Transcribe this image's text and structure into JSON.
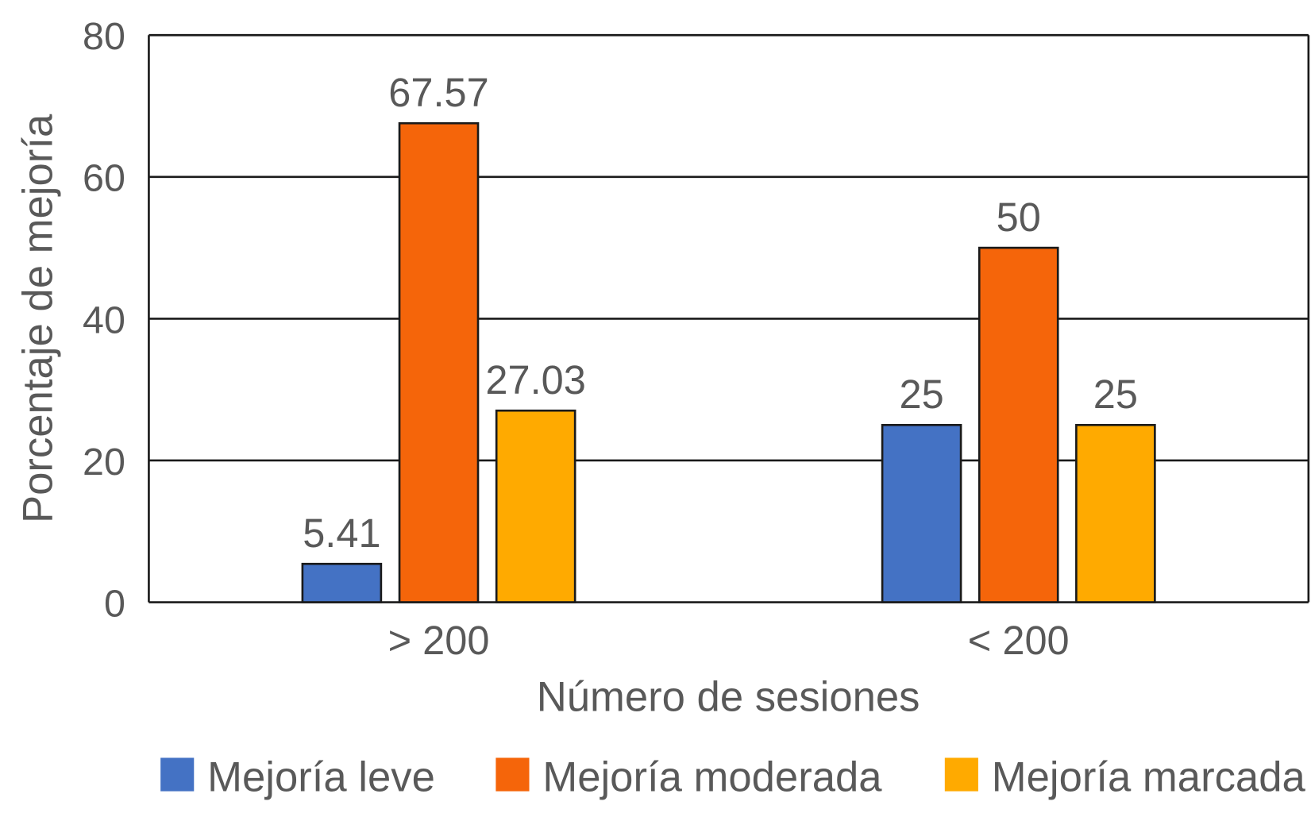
{
  "chart_data": {
    "type": "bar",
    "title": "",
    "xlabel": "Número de sesiones",
    "ylabel": "Porcentaje de mejoría",
    "ylim": [
      0,
      80
    ],
    "yticks": [
      "0",
      "20",
      "40",
      "60",
      "80"
    ],
    "grid": true,
    "legend_position": "bottom",
    "categories": [
      "> 200",
      "< 200"
    ],
    "series": [
      {
        "name": "Mejoría leve",
        "color": "#4472C4",
        "values": [
          5.41,
          25
        ],
        "labels": [
          "5.41",
          "25"
        ]
      },
      {
        "name": "Mejoría moderada",
        "color": "#F5650A",
        "values": [
          67.57,
          50
        ],
        "labels": [
          "67.57",
          "50"
        ]
      },
      {
        "name": "Mejoría marcada",
        "color": "#FFAA00",
        "values": [
          27.03,
          25
        ],
        "labels": [
          "27.03",
          "25"
        ]
      }
    ]
  }
}
